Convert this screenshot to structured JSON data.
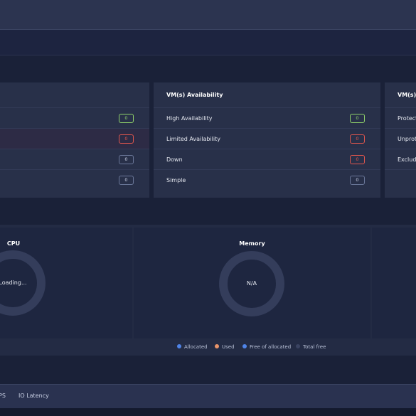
{
  "vm_availability": {
    "title": "VM(s) Availability",
    "rows": [
      {
        "label": "High Availability",
        "count": "0",
        "status": "green"
      },
      {
        "label": "Limited Availability",
        "count": "0",
        "status": "red"
      },
      {
        "label": "Down",
        "count": "0",
        "status": "red"
      },
      {
        "label": "Simple",
        "count": "0",
        "status": "neutral"
      }
    ]
  },
  "left_card": {
    "counts": [
      "0",
      "0",
      "0",
      "0"
    ]
  },
  "vm_protection": {
    "title": "VM(s) P",
    "rows": [
      "Protect",
      "Unprot",
      "Exclude"
    ]
  },
  "cpu": {
    "title": "CPU",
    "center": "Loading..."
  },
  "memory": {
    "title": "Memory",
    "center": "N/A"
  },
  "legend": [
    {
      "label": "Allocated",
      "color": "#4f84e8"
    },
    {
      "label": "Used",
      "color": "#e8946a"
    },
    {
      "label": "Free of allocated",
      "color": "#4f84e8"
    },
    {
      "label": "Total free",
      "color": "#3a4361"
    }
  ],
  "tabs": [
    "PS",
    "IO Latency"
  ]
}
